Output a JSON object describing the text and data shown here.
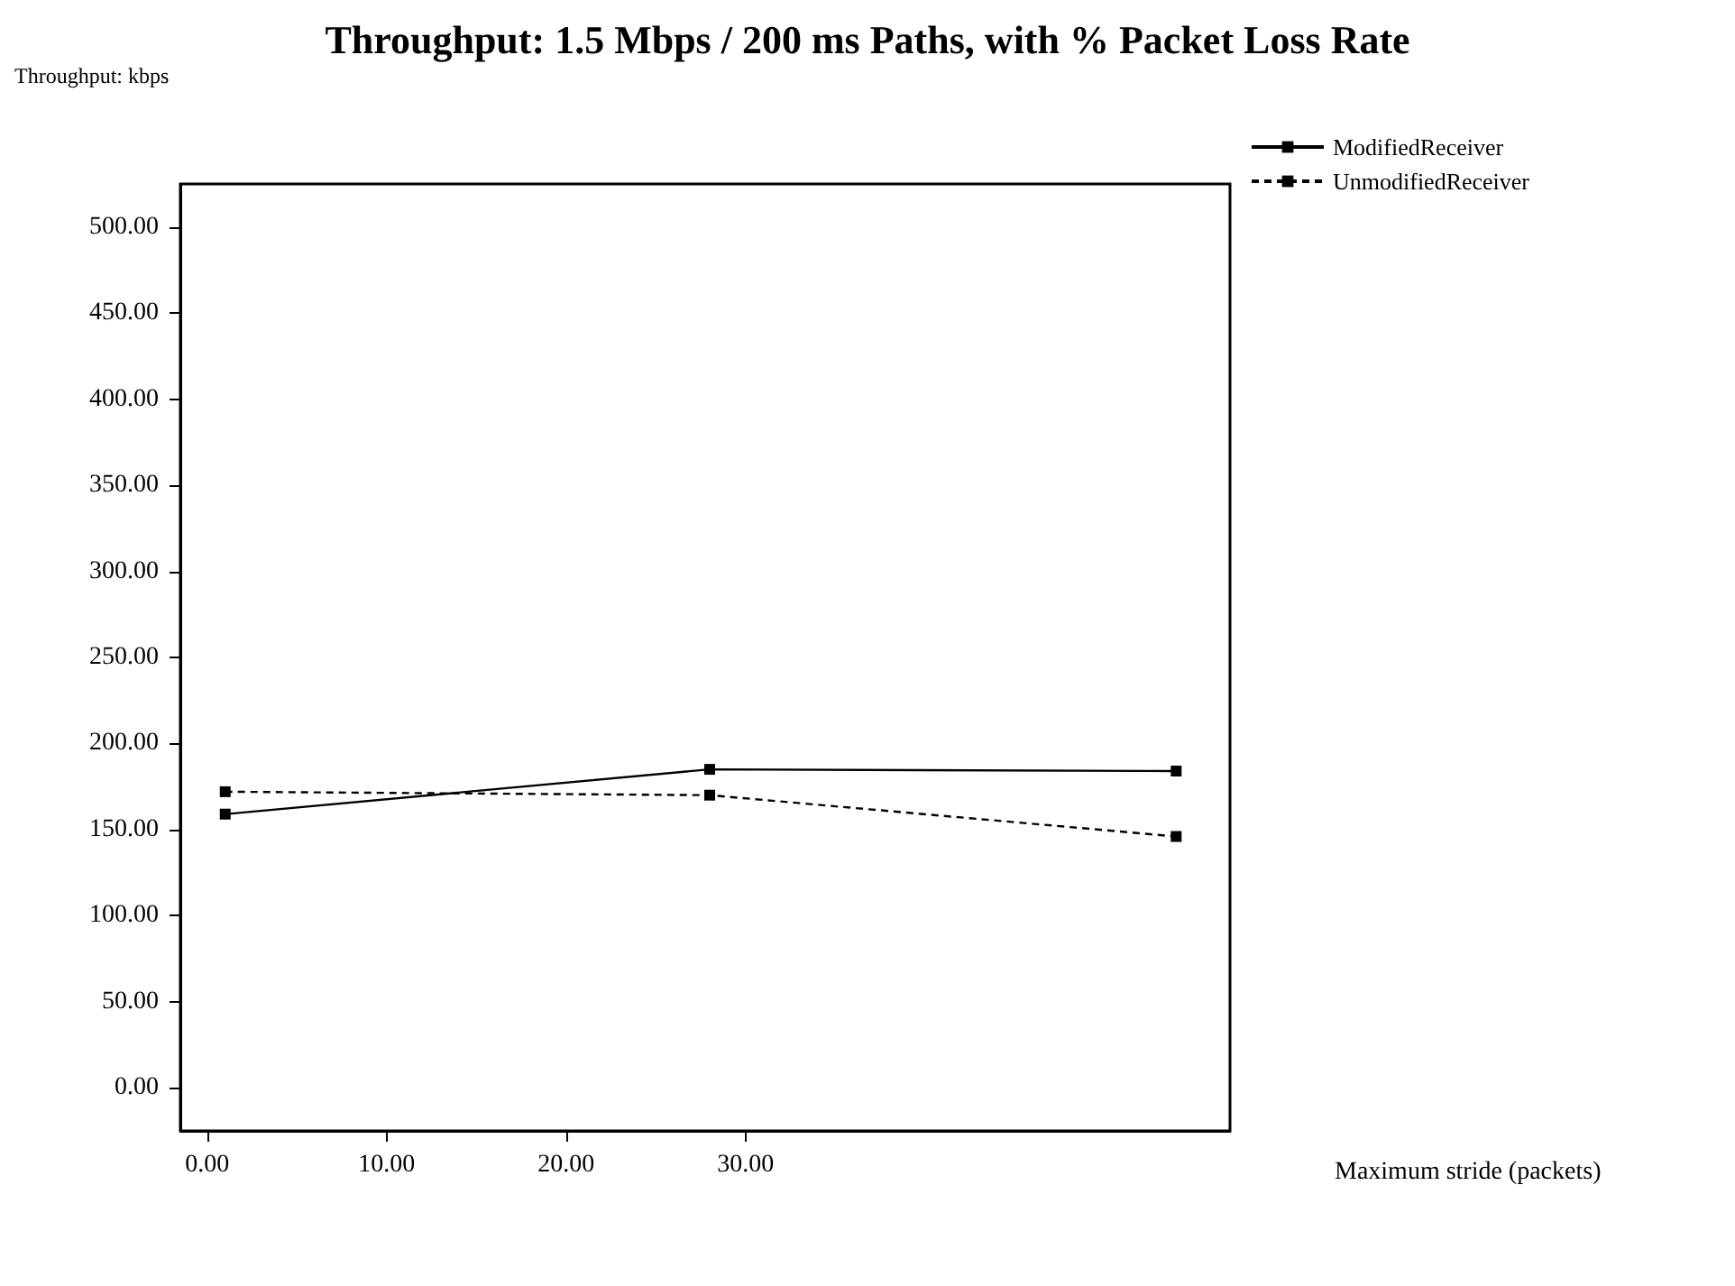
{
  "chart_data": {
    "type": "line",
    "title": "Throughput: 1.5 Mbps / 200 ms Paths, with % Packet Loss Rate",
    "ylabel": "Throughput: kbps",
    "xlabel": "Maximum stride (packets)",
    "x": [
      1,
      28,
      54
    ],
    "series": [
      {
        "name": "ModifiedReceiver",
        "color": "#000000",
        "values": [
          159,
          185,
          184
        ],
        "line_style": "solid"
      },
      {
        "name": "UnmodifiedReceiver",
        "color": "#000000",
        "values": [
          172,
          170,
          146
        ],
        "line_style": "dashed"
      }
    ],
    "xlim": [
      -1.5,
      57
    ],
    "xticks": [
      {
        "value": 0,
        "label": "0.00"
      },
      {
        "value": 10,
        "label": "10.00"
      },
      {
        "value": 20,
        "label": "20.00"
      },
      {
        "value": 30,
        "label": "30.00"
      }
    ],
    "ylim": [
      -25,
      525
    ],
    "yticks": [
      {
        "value": 0,
        "label": "0.00"
      },
      {
        "value": 50,
        "label": "50.00"
      },
      {
        "value": 100,
        "label": "100.00"
      },
      {
        "value": 150,
        "label": "150.00"
      },
      {
        "value": 200,
        "label": "200.00"
      },
      {
        "value": 250,
        "label": "250.00"
      },
      {
        "value": 300,
        "label": "300.00"
      },
      {
        "value": 350,
        "label": "350.00"
      },
      {
        "value": 400,
        "label": "400.00"
      },
      {
        "value": 450,
        "label": "450.00"
      },
      {
        "value": 500,
        "label": "500.00"
      }
    ],
    "grid": false,
    "legend": "top right",
    "marker": "square"
  }
}
